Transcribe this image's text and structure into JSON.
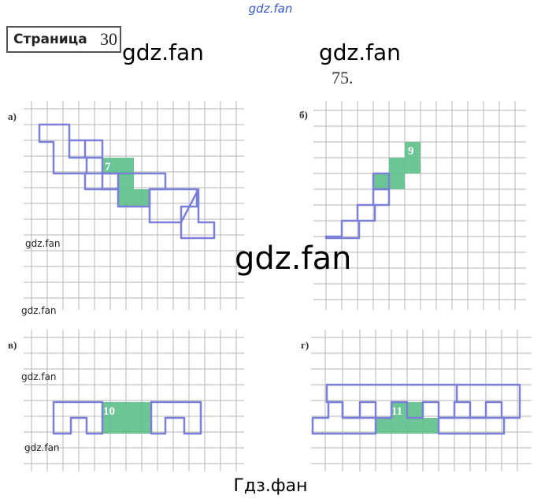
{
  "watermark_top": "gdz.fan",
  "page_label": "Страница",
  "page_number": "30",
  "watermark_large": [
    "gdz.fan",
    "gdz.fan"
  ],
  "task_number": "75.",
  "watermark_center": "gdz.fan",
  "watermark_small": [
    "gdz.fan",
    "gdz.fan",
    "gdz.fan",
    "gdz.fan"
  ],
  "panels": [
    {
      "label": "а)",
      "number": "7"
    },
    {
      "label": "б)",
      "number": "9"
    },
    {
      "label": "в)",
      "number": "10"
    },
    {
      "label": "г)",
      "number": "11"
    }
  ],
  "bottom_watermark": "Гдз.фан",
  "colors": {
    "outline": "#7b7fd8",
    "fill": "#5cbf8a",
    "grid": "#b5b5b5",
    "shaded_text": "#ffffff"
  }
}
